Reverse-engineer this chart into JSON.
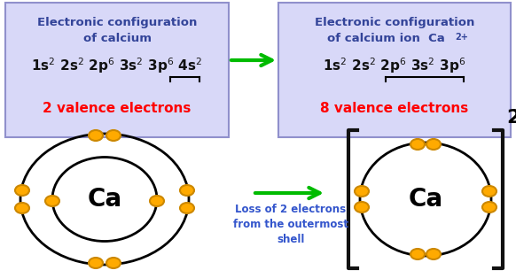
{
  "bg_color": "#ffffff",
  "box1_bg": "#d8d8f8",
  "box1_border": "#9090cc",
  "box2_bg": "#d8d8f8",
  "box2_border": "#9090cc",
  "arrow_color": "#00bb00",
  "electron_color": "#ffaa00",
  "electron_edge": "#cc8800",
  "ca_label": "Ca",
  "loss_text": "Loss of 2 electrons\nfrom the outermost\nshell",
  "loss_text_color": "#3355cc",
  "ion_charge": "2+",
  "title_color": "#334499",
  "red_color": "#ff0000",
  "config_color": "#111111",
  "bracket_color": "#111111"
}
